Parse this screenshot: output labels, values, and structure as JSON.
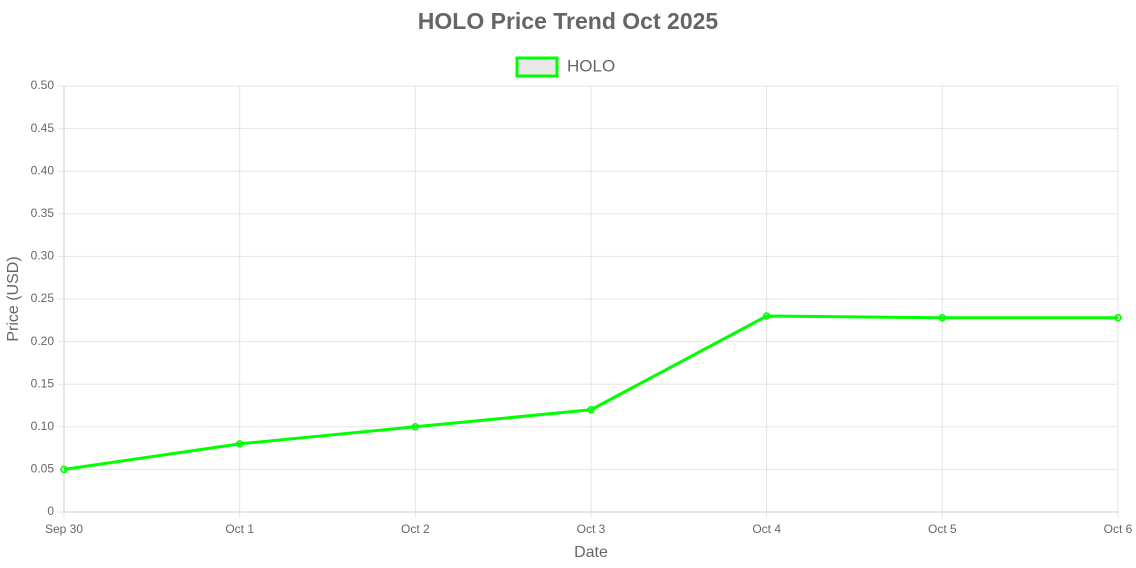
{
  "chart_data": {
    "type": "line",
    "title": "HOLO Price Trend Oct 2025",
    "x_label": "Date",
    "y_label": "Price (USD)",
    "categories": [
      "Sep 30",
      "Oct 1",
      "Oct 2",
      "Oct 3",
      "Oct 4",
      "Oct 5",
      "Oct 6"
    ],
    "series": [
      {
        "name": "HOLO",
        "color": "#00ff00",
        "values": [
          0.05,
          0.08,
          0.1,
          0.12,
          0.23,
          0.228,
          0.228
        ]
      }
    ],
    "ylim": [
      0,
      0.5
    ],
    "yticks": [
      0,
      0.05,
      {
        "value": 0.1,
        "label": "0.10"
      },
      0.15,
      {
        "value": 0.2,
        "label": "0.20"
      },
      0.25,
      {
        "value": 0.3,
        "label": "0.30"
      },
      0.35,
      {
        "value": 0.4,
        "label": "0.40"
      },
      0.45,
      {
        "value": 0.5,
        "label": "0.50"
      }
    ],
    "grid": true,
    "legend": "top"
  }
}
